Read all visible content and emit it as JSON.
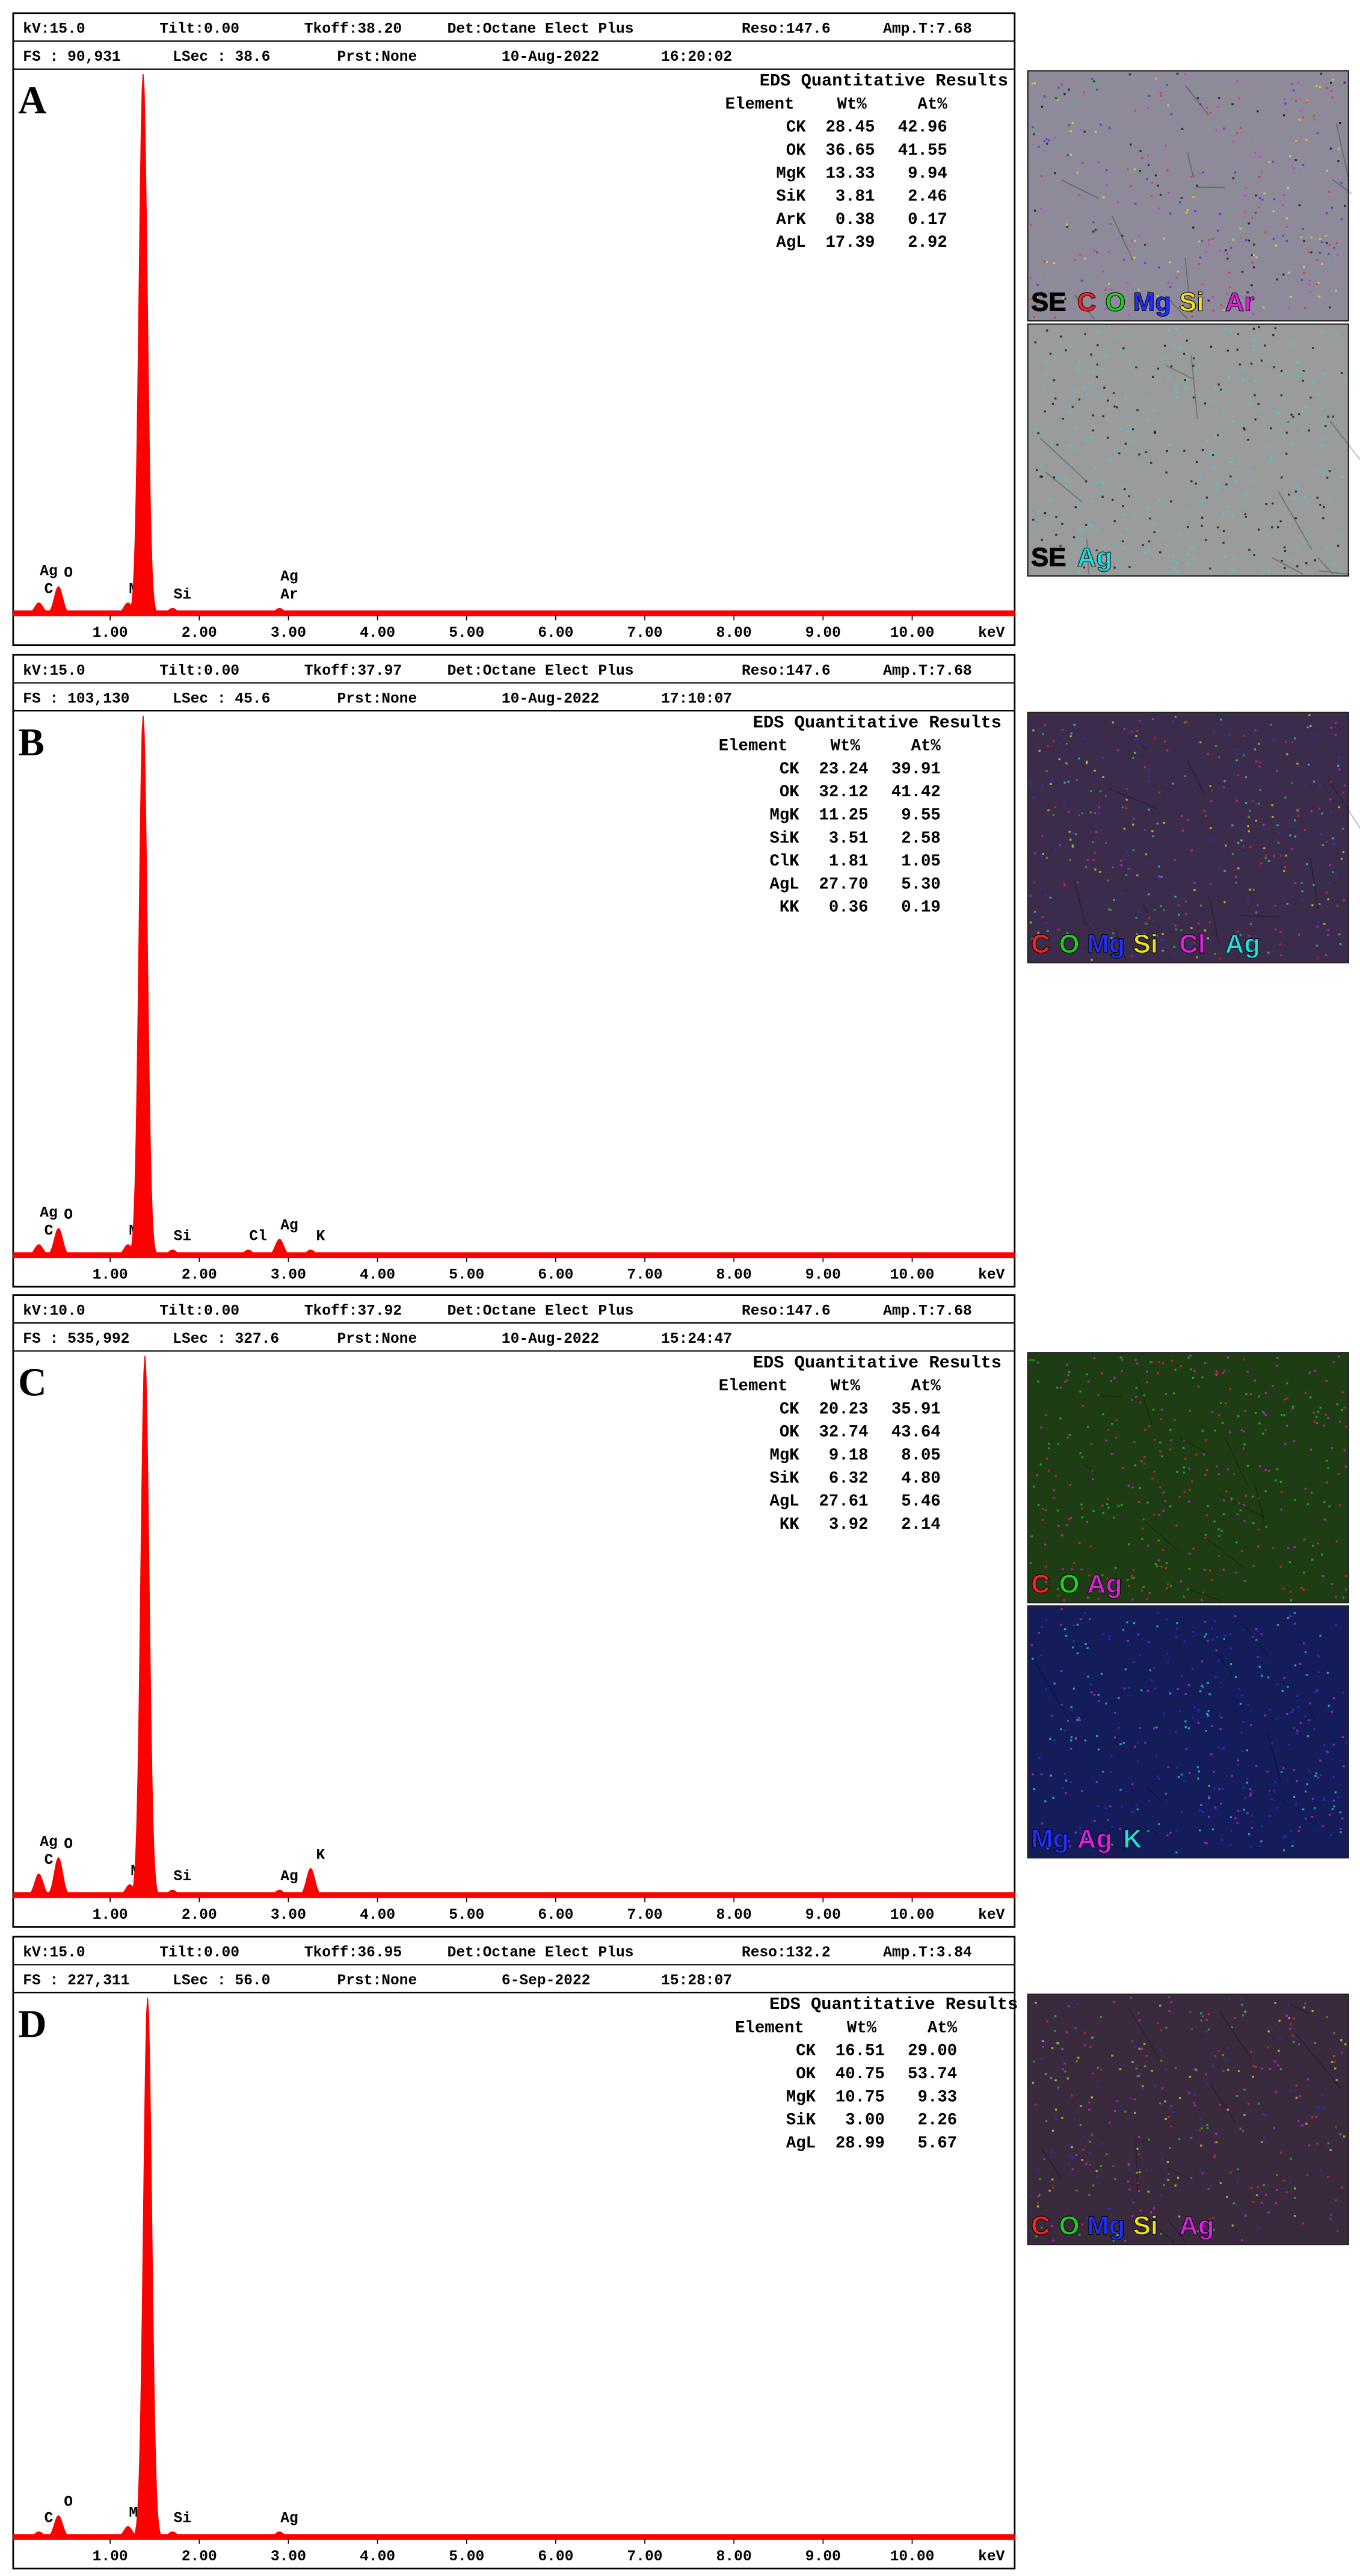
{
  "spectrum_axis": {
    "xlim": [
      0,
      11.15
    ],
    "unit": "keV",
    "color": "#ff0000",
    "xticks": [
      {
        "value": 1,
        "label": "1.00"
      },
      {
        "value": 2,
        "label": "2.00"
      },
      {
        "value": 3,
        "label": "3.00"
      },
      {
        "value": 4,
        "label": "4.00"
      },
      {
        "value": 5,
        "label": "5.00"
      },
      {
        "value": 6,
        "label": "6.00"
      },
      {
        "value": 7,
        "label": "7.00"
      },
      {
        "value": 8,
        "label": "8.00"
      },
      {
        "value": 9,
        "label": "9.00"
      },
      {
        "value": 10,
        "label": "10.00"
      }
    ]
  },
  "panels": [
    {
      "label": "A",
      "header1": [
        "kV:15.0",
        "Tilt:0.00",
        "Tkoff:38.20",
        "Det:Octane Elect Plus",
        "Reso:147.6",
        "Amp.T:7.68"
      ],
      "header2": [
        "FS : 90,931",
        "LSec : 38.6",
        "Prst:None",
        "10-Aug-2022",
        "16:20:02"
      ],
      "table": {
        "title": "EDS Quantitative Results",
        "columns": [
          "Element",
          "Wt%",
          "At%"
        ],
        "rows": [
          [
            "CK",
            "28.45",
            "42.96"
          ],
          [
            "OK",
            "36.65",
            "41.55"
          ],
          [
            "MgK",
            "13.33",
            "9.94"
          ],
          [
            "SiK",
            "3.81",
            "2.46"
          ],
          [
            "ArK",
            "0.38",
            "0.17"
          ],
          [
            "AgL",
            "17.39",
            "2.92"
          ]
        ]
      },
      "peaks": [
        {
          "kev": 0.2,
          "height": 2,
          "labels": [
            "C",
            "Ag"
          ]
        },
        {
          "kev": 0.42,
          "height": 5,
          "labels": [
            "O"
          ]
        },
        {
          "kev": 1.2,
          "height": 2,
          "labels": [
            "Mg"
          ]
        },
        {
          "kev": 1.37,
          "height": 100,
          "labels": []
        },
        {
          "kev": 1.7,
          "height": 1,
          "labels": [
            "Si"
          ]
        },
        {
          "kev": 2.9,
          "height": 1,
          "labels": [
            "Ar",
            "Ag"
          ]
        }
      ],
      "maps": [
        {
          "background": "#8f8a9a",
          "legend": [
            {
              "text": "SE",
              "color": "#000000"
            },
            {
              "text": "C",
              "color": "#ff2020"
            },
            {
              "text": "O",
              "color": "#20d020"
            },
            {
              "text": "Mg",
              "color": "#2030ff"
            },
            {
              "text": "Si",
              "color": "#f0e020"
            },
            {
              "text": "Ar",
              "color": "#e020e0"
            }
          ]
        },
        {
          "background": "#9a9c9c",
          "legend": [
            {
              "text": "SE",
              "color": "#000000"
            },
            {
              "text": "Ag",
              "color": "#20e0e0"
            }
          ]
        }
      ]
    },
    {
      "label": "B",
      "header1": [
        "kV:15.0",
        "Tilt:0.00",
        "Tkoff:37.97",
        "Det:Octane Elect Plus",
        "Reso:147.6",
        "Amp.T:7.68"
      ],
      "header2": [
        "FS : 103,130",
        "LSec : 45.6",
        "Prst:None",
        "10-Aug-2022",
        "17:10:07"
      ],
      "table": {
        "title": "EDS Quantitative Results",
        "columns": [
          "Element",
          "Wt%",
          "At%"
        ],
        "rows": [
          [
            "CK",
            "23.24",
            "39.91"
          ],
          [
            "OK",
            "32.12",
            "41.42"
          ],
          [
            "MgK",
            "11.25",
            "9.55"
          ],
          [
            "SiK",
            "3.51",
            "2.58"
          ],
          [
            "ClK",
            "1.81",
            "1.05"
          ],
          [
            "AgL",
            "27.70",
            "5.30"
          ],
          [
            "KK",
            "0.36",
            "0.19"
          ]
        ]
      },
      "peaks": [
        {
          "kev": 0.2,
          "height": 2,
          "labels": [
            "C",
            "Ag"
          ]
        },
        {
          "kev": 0.42,
          "height": 5,
          "labels": [
            "O"
          ]
        },
        {
          "kev": 1.2,
          "height": 2,
          "labels": [
            "Mg"
          ]
        },
        {
          "kev": 1.37,
          "height": 100,
          "labels": []
        },
        {
          "kev": 1.7,
          "height": 1,
          "labels": [
            "Si"
          ]
        },
        {
          "kev": 2.55,
          "height": 1,
          "labels": [
            "Cl"
          ]
        },
        {
          "kev": 2.9,
          "height": 3,
          "labels": [
            "Ag"
          ]
        },
        {
          "kev": 3.25,
          "height": 1,
          "labels": [
            "K"
          ]
        }
      ],
      "maps": [
        {
          "background": "#3a2c4a",
          "legend": [
            {
              "text": "C",
              "color": "#ff2020"
            },
            {
              "text": "O",
              "color": "#20d020"
            },
            {
              "text": "Mg",
              "color": "#2030ff"
            },
            {
              "text": "Si",
              "color": "#f0e020"
            },
            {
              "text": "Cl",
              "color": "#e020e0"
            },
            {
              "text": "Ag",
              "color": "#20e0e0"
            }
          ]
        }
      ]
    },
    {
      "label": "C",
      "header1": [
        "kV:10.0",
        "Tilt:0.00",
        "Tkoff:37.92",
        "Det:Octane Elect Plus",
        "Reso:147.6",
        "Amp.T:7.68"
      ],
      "header2": [
        "FS : 535,992",
        "LSec : 327.6",
        "Prst:None",
        "10-Aug-2022",
        "15:24:47"
      ],
      "table": {
        "title": "EDS Quantitative Results",
        "columns": [
          "Element",
          "Wt%",
          "At%"
        ],
        "rows": [
          [
            "CK",
            "20.23",
            "35.91"
          ],
          [
            "OK",
            "32.74",
            "43.64"
          ],
          [
            "MgK",
            "9.18",
            "8.05"
          ],
          [
            "SiK",
            "6.32",
            "4.80"
          ],
          [
            "AgL",
            "27.61",
            "5.46"
          ],
          [
            "KK",
            "3.92",
            "2.14"
          ]
        ]
      },
      "peaks": [
        {
          "kev": 0.2,
          "height": 4,
          "labels": [
            "C",
            "Ag"
          ]
        },
        {
          "kev": 0.42,
          "height": 7,
          "labels": [
            "O"
          ]
        },
        {
          "kev": 1.22,
          "height": 2,
          "labels": [
            "Mg"
          ]
        },
        {
          "kev": 1.39,
          "height": 100,
          "labels": []
        },
        {
          "kev": 1.7,
          "height": 1,
          "labels": [
            "Si"
          ]
        },
        {
          "kev": 2.9,
          "height": 1,
          "labels": [
            "Ag"
          ]
        },
        {
          "kev": 3.25,
          "height": 5,
          "labels": [
            "K"
          ]
        }
      ],
      "maps": [
        {
          "background": "#1f3d14",
          "legend": [
            {
              "text": "C",
              "color": "#ff2020"
            },
            {
              "text": "O",
              "color": "#20d020"
            },
            {
              "text": "Ag",
              "color": "#e020e0"
            }
          ]
        },
        {
          "background": "#141c5a",
          "legend": [
            {
              "text": "Mg",
              "color": "#2030ff"
            },
            {
              "text": "Ag",
              "color": "#e020e0"
            },
            {
              "text": "K",
              "color": "#20e0e0"
            }
          ]
        }
      ]
    },
    {
      "label": "D",
      "header1": [
        "kV:15.0",
        "Tilt:0.00",
        "Tkoff:36.95",
        "Det:Octane Elect Plus",
        "Reso:132.2",
        "Amp.T:3.84"
      ],
      "header2": [
        "FS : 227,311",
        "LSec : 56.0",
        "Prst:None",
        "6-Sep-2022",
        "15:28:07"
      ],
      "table": {
        "title": "EDS Quantitative Results",
        "columns": [
          "Element",
          "Wt%",
          "At%"
        ],
        "rows": [
          [
            "CK",
            "16.51",
            "29.00"
          ],
          [
            "OK",
            "40.75",
            "53.74"
          ],
          [
            "MgK",
            "10.75",
            "9.33"
          ],
          [
            "SiK",
            "3.00",
            "2.26"
          ],
          [
            "AgL",
            "28.99",
            "5.67"
          ]
        ]
      },
      "peaks": [
        {
          "kev": 0.2,
          "height": 1,
          "labels": [
            "C"
          ]
        },
        {
          "kev": 0.42,
          "height": 4,
          "labels": [
            "O"
          ]
        },
        {
          "kev": 1.2,
          "height": 2,
          "labels": [
            "Mg"
          ]
        },
        {
          "kev": 1.42,
          "height": 100,
          "labels": []
        },
        {
          "kev": 1.7,
          "height": 1,
          "labels": [
            "Si"
          ]
        },
        {
          "kev": 2.9,
          "height": 1,
          "labels": [
            "Ag"
          ]
        }
      ],
      "maps": [
        {
          "background": "#3a2a3e",
          "legend": [
            {
              "text": "C",
              "color": "#ff2020"
            },
            {
              "text": "O",
              "color": "#20d020"
            },
            {
              "text": "Mg",
              "color": "#2030ff"
            },
            {
              "text": "Si",
              "color": "#f0e020"
            },
            {
              "text": "Ag",
              "color": "#e020e0"
            }
          ]
        }
      ]
    }
  ]
}
